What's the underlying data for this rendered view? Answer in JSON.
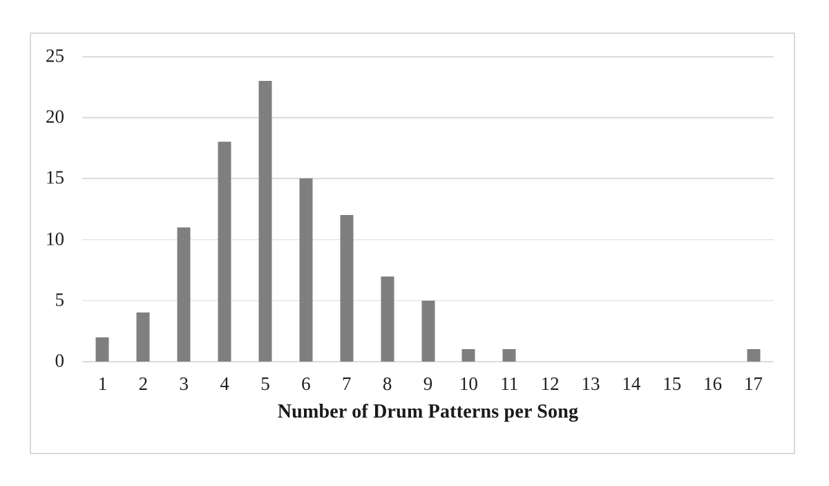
{
  "chart_data": {
    "type": "bar",
    "categories": [
      "1",
      "2",
      "3",
      "4",
      "5",
      "6",
      "7",
      "8",
      "9",
      "10",
      "11",
      "12",
      "13",
      "14",
      "15",
      "16",
      "17"
    ],
    "values": [
      2,
      4,
      11,
      18,
      23,
      15,
      12,
      7,
      5,
      1,
      1,
      0,
      0,
      0,
      0,
      0,
      1
    ],
    "title": "",
    "xlabel": "Number of Drum Patterns per Song",
    "ylabel": "",
    "ylim": [
      0,
      25
    ],
    "yticks": [
      0,
      5,
      10,
      15,
      20,
      25
    ],
    "grid": true,
    "legend": false,
    "bar_color": "#7f7f7f",
    "gridline_color": "#d9d9d9",
    "frame_color": "#d9d9d9",
    "text_color": "#1f1f1f"
  }
}
